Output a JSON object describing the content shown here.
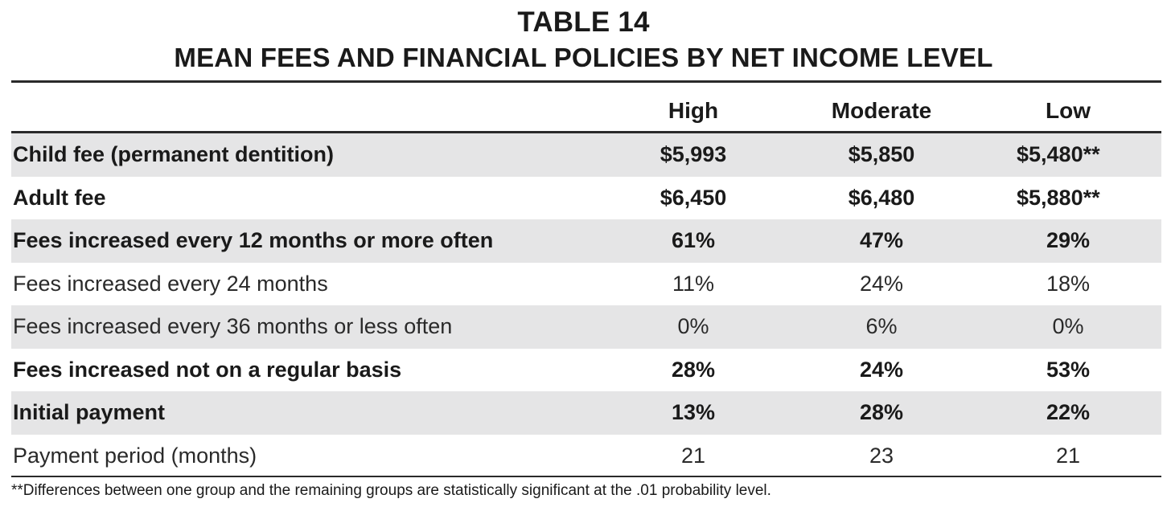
{
  "title": "TABLE 14",
  "subtitle": "MEAN FEES AND FINANCIAL POLICIES BY NET INCOME LEVEL",
  "table": {
    "columns": [
      "High",
      "Moderate",
      "Low"
    ],
    "rows": [
      {
        "label": "Child fee (permanent dentition)",
        "values": [
          "$5,993",
          "$5,850",
          "$5,480**"
        ],
        "bold": true,
        "shaded": true
      },
      {
        "label": "Adult fee",
        "values": [
          "$6,450",
          "$6,480",
          "$5,880**"
        ],
        "bold": true,
        "shaded": false
      },
      {
        "label": "Fees increased every 12 months or more often",
        "values": [
          "61%",
          "47%",
          "29%"
        ],
        "bold": true,
        "shaded": true
      },
      {
        "label": "Fees increased every 24 months",
        "values": [
          "11%",
          "24%",
          "18%"
        ],
        "bold": false,
        "shaded": false
      },
      {
        "label": "Fees increased every 36 months or less often",
        "values": [
          "0%",
          "6%",
          "0%"
        ],
        "bold": false,
        "shaded": true
      },
      {
        "label": "Fees increased not on a regular basis",
        "values": [
          "28%",
          "24%",
          "53%"
        ],
        "bold": true,
        "shaded": false
      },
      {
        "label": "Initial payment",
        "values": [
          "13%",
          "28%",
          "22%"
        ],
        "bold": true,
        "shaded": true
      },
      {
        "label": "Payment period (months)",
        "values": [
          "21",
          "23",
          "21"
        ],
        "bold": false,
        "shaded": false
      }
    ]
  },
  "footnote": "**Differences between one group and the remaining groups are statistically significant at the .01 probability level.",
  "colors": {
    "text": "#1a1a1a",
    "shade": "#e5e5e6",
    "rule": "#2a2a2a"
  }
}
